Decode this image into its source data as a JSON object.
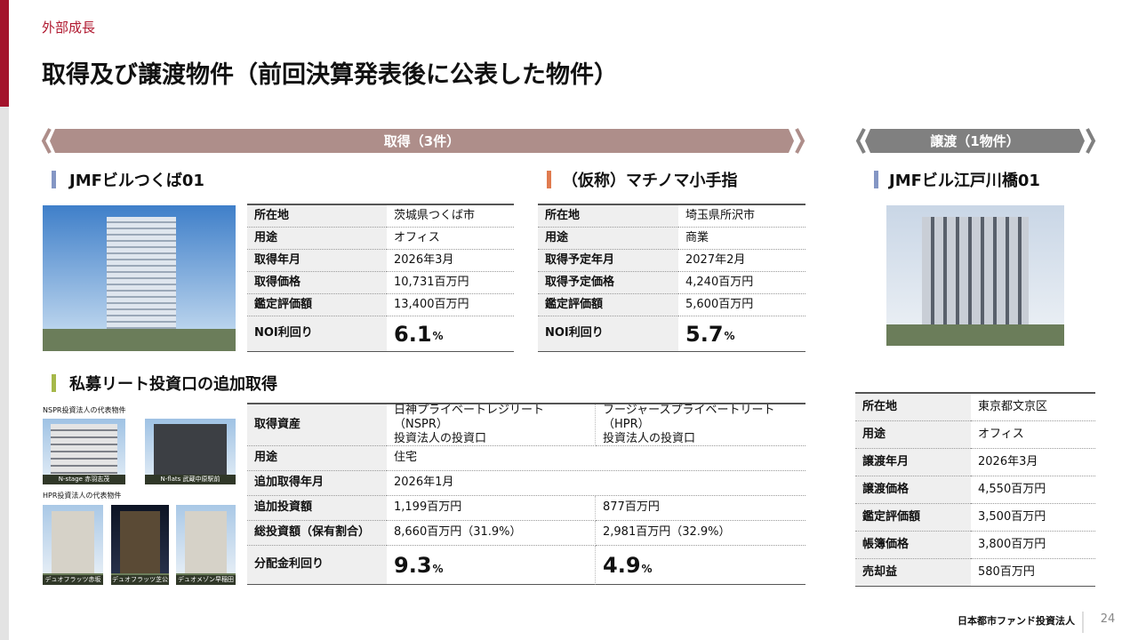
{
  "header": {
    "section": "外部成長",
    "title": "取得及び譲渡物件（前回決算発表後に公表した物件）"
  },
  "acquisition": {
    "banner": "取得（3件）",
    "properties": [
      {
        "name": "JMFビルつくば01",
        "rows": [
          [
            "所在地",
            "茨城県つくば市"
          ],
          [
            "用途",
            "オフィス"
          ],
          [
            "取得年月",
            "2026年3月"
          ],
          [
            "取得価格",
            "10,731百万円"
          ],
          [
            "鑑定評価額",
            "13,400百万円"
          ]
        ],
        "noi": {
          "label": "NOI利回り",
          "value": "6.1",
          "unit": "%"
        }
      },
      {
        "name": "（仮称）マチノマ小手指",
        "rows": [
          [
            "所在地",
            "埼玉県所沢市"
          ],
          [
            "用途",
            "商業"
          ],
          [
            "取得予定年月",
            "2027年2月"
          ],
          [
            "取得予定価格",
            "4,240百万円"
          ],
          [
            "鑑定評価額",
            "5,600百万円"
          ]
        ],
        "noi": {
          "label": "NOI利回り",
          "value": "5.7",
          "unit": "%"
        }
      }
    ]
  },
  "private_reit": {
    "title": "私募リート投資口の追加取得",
    "nspr_caption": "NSPR投資法人の代表物件",
    "nspr_photos": [
      "N-stage 赤羽志茂",
      "N-flats 武蔵中原駅前"
    ],
    "hpr_caption": "HPR投資法人の代表物件",
    "hpr_photos": [
      "デュオフラッツ赤坂",
      "デュオフラッツ芝公園",
      "デュオメゾン早稲田"
    ],
    "rows": [
      [
        "取得資産",
        "日神プライベートレジリート（NSPR）\n投資法人の投資口",
        "フージャースプライベートリート（HPR）\n投資法人の投資口"
      ],
      [
        "用途",
        "住宅"
      ],
      [
        "追加取得年月",
        "2026年1月"
      ],
      [
        "追加投資額",
        "1,199百万円",
        "877百万円"
      ],
      [
        "総投資額（保有割合）",
        "8,660百万円（31.9%）",
        "2,981百万円（32.9%）"
      ]
    ],
    "yield": {
      "label": "分配金利回り",
      "values": [
        {
          "value": "9.3",
          "unit": "%"
        },
        {
          "value": "4.9",
          "unit": "%"
        }
      ]
    }
  },
  "disposition": {
    "banner": "譲渡（1物件）",
    "name": "JMFビル江戸川橋01",
    "rows": [
      [
        "所在地",
        "東京都文京区"
      ],
      [
        "用途",
        "オフィス"
      ],
      [
        "譲渡年月",
        "2026年3月"
      ],
      [
        "譲渡価格",
        "4,550百万円"
      ],
      [
        "鑑定評価額",
        "3,500百万円"
      ],
      [
        "帳簿価格",
        "3,800百万円"
      ],
      [
        "売却益",
        "580百万円"
      ]
    ]
  },
  "footer": {
    "company": "日本都市ファンド投資法人",
    "page": "24"
  }
}
